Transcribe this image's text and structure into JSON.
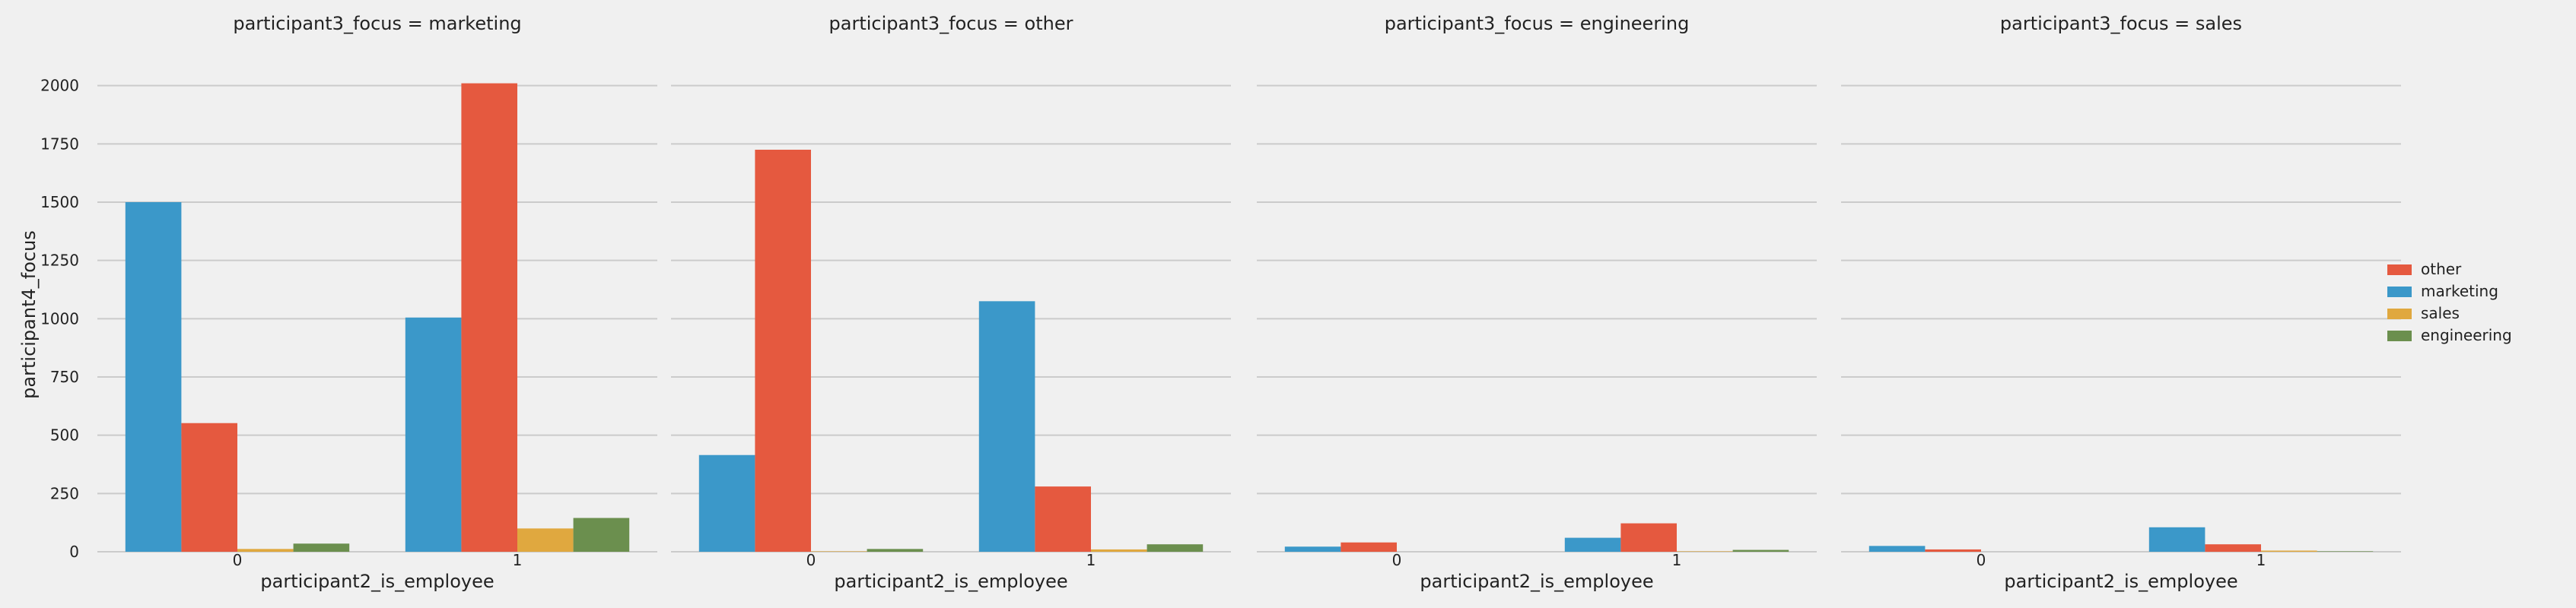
{
  "chart_data": {
    "type": "bar",
    "ylabel": "participant4_focus",
    "xlabel": "participant2_is_employee",
    "ylim": [
      0,
      2100
    ],
    "yticks": [
      "0",
      "250",
      "500",
      "750",
      "1000",
      "1250",
      "1500",
      "1750",
      "2000"
    ],
    "categories": [
      "0",
      "1"
    ],
    "grid": true,
    "legend_position": "right",
    "hue_order": [
      "marketing",
      "other",
      "sales",
      "engineering"
    ],
    "legend": [
      {
        "name": "other",
        "color": "#e5593f"
      },
      {
        "name": "marketing",
        "color": "#3b98c9"
      },
      {
        "name": "sales",
        "color": "#e0a83f"
      },
      {
        "name": "engineering",
        "color": "#6b8f4e"
      }
    ],
    "panels": [
      {
        "title": "participant3_focus = marketing",
        "series": [
          {
            "name": "marketing",
            "values": [
              1500,
              1005
            ]
          },
          {
            "name": "other",
            "values": [
              552,
              2010
            ]
          },
          {
            "name": "sales",
            "values": [
              12,
              100
            ]
          },
          {
            "name": "engineering",
            "values": [
              35,
              145
            ]
          }
        ]
      },
      {
        "title": "participant3_focus = other",
        "series": [
          {
            "name": "marketing",
            "values": [
              415,
              1075
            ]
          },
          {
            "name": "other",
            "values": [
              1725,
              280
            ]
          },
          {
            "name": "sales",
            "values": [
              2,
              10
            ]
          },
          {
            "name": "engineering",
            "values": [
              12,
              32
            ]
          }
        ]
      },
      {
        "title": "participant3_focus = engineering",
        "series": [
          {
            "name": "marketing",
            "values": [
              22,
              60
            ]
          },
          {
            "name": "other",
            "values": [
              40,
              122
            ]
          },
          {
            "name": "sales",
            "values": [
              0,
              2
            ]
          },
          {
            "name": "engineering",
            "values": [
              0,
              8
            ]
          }
        ]
      },
      {
        "title": "participant3_focus = sales",
        "series": [
          {
            "name": "marketing",
            "values": [
              25,
              105
            ]
          },
          {
            "name": "other",
            "values": [
              10,
              32
            ]
          },
          {
            "name": "sales",
            "values": [
              0,
              5
            ]
          },
          {
            "name": "engineering",
            "values": [
              0,
              2
            ]
          }
        ]
      }
    ]
  }
}
